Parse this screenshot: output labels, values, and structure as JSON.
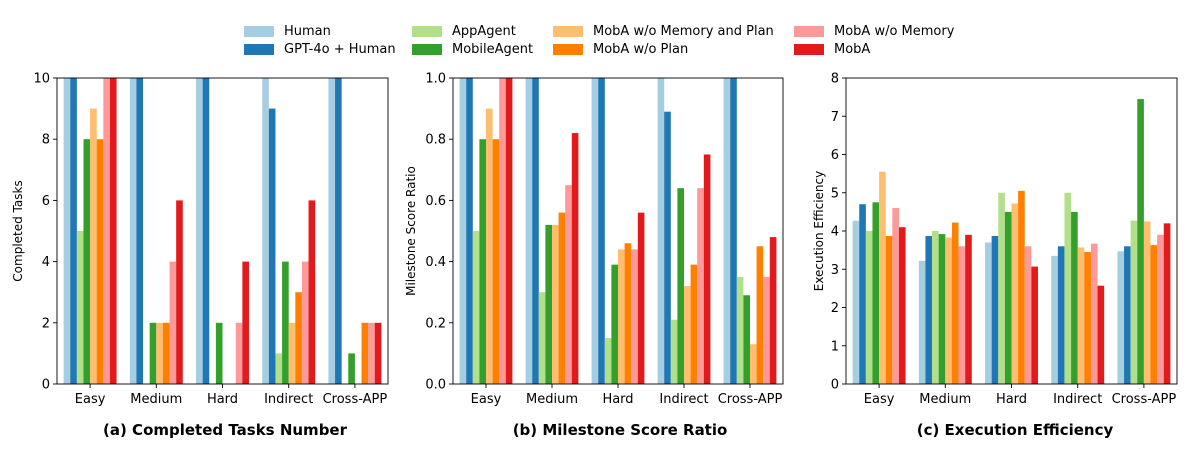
{
  "legend": [
    {
      "label": "Human",
      "color": "#a6cee3"
    },
    {
      "label": "GPT-4o + Human",
      "color": "#1f78b4"
    },
    {
      "label": "AppAgent",
      "color": "#b2df8a"
    },
    {
      "label": "MobileAgent",
      "color": "#33a02c"
    },
    {
      "label": "MobA w/o Memory and Plan",
      "color": "#fdbf6f"
    },
    {
      "label": "MobA w/o Plan",
      "color": "#ff7f00"
    },
    {
      "label": "MobA w/o Memory",
      "color": "#fb9a99"
    },
    {
      "label": "MobA",
      "color": "#e31a1c"
    }
  ],
  "chart_data": [
    {
      "type": "bar",
      "caption": "(a) Completed Tasks Number",
      "ylabel": "Completed Tasks",
      "ylim": [
        0,
        10
      ],
      "yticks": [
        0,
        2,
        4,
        6,
        8,
        10
      ],
      "tick_labels": [
        "0",
        "2",
        "4",
        "6",
        "8",
        "10"
      ],
      "categories": [
        "Easy",
        "Medium",
        "Hard",
        "Indirect",
        "Cross-APP"
      ],
      "series": [
        {
          "name": "Human",
          "values": [
            10,
            10,
            10,
            10,
            10
          ]
        },
        {
          "name": "GPT-4o + Human",
          "values": [
            10,
            10,
            10,
            9,
            10
          ]
        },
        {
          "name": "AppAgent",
          "values": [
            5,
            0,
            0,
            1,
            0
          ]
        },
        {
          "name": "MobileAgent",
          "values": [
            8,
            2,
            2,
            4,
            1
          ]
        },
        {
          "name": "MobA w/o Memory and Plan",
          "values": [
            9,
            2,
            0,
            2,
            0
          ]
        },
        {
          "name": "MobA w/o Plan",
          "values": [
            8,
            2,
            0,
            3,
            2
          ]
        },
        {
          "name": "MobA w/o Memory",
          "values": [
            10,
            4,
            2,
            4,
            2
          ]
        },
        {
          "name": "MobA",
          "values": [
            10,
            6,
            4,
            6,
            2
          ]
        }
      ]
    },
    {
      "type": "bar",
      "caption": "(b) Milestone Score Ratio",
      "ylabel": "Milestone Score Ratio",
      "ylim": [
        0,
        1
      ],
      "yticks": [
        0,
        0.2,
        0.4,
        0.6,
        0.8,
        1.0
      ],
      "tick_labels": [
        "0.0",
        "0.2",
        "0.4",
        "0.6",
        "0.8",
        "1.0"
      ],
      "categories": [
        "Easy",
        "Medium",
        "Hard",
        "Indirect",
        "Cross-APP"
      ],
      "series": [
        {
          "name": "Human",
          "values": [
            1.0,
            1.0,
            1.0,
            1.0,
            1.0
          ]
        },
        {
          "name": "GPT-4o + Human",
          "values": [
            1.0,
            1.0,
            1.0,
            0.89,
            1.0
          ]
        },
        {
          "name": "AppAgent",
          "values": [
            0.5,
            0.3,
            0.15,
            0.21,
            0.35
          ]
        },
        {
          "name": "MobileAgent",
          "values": [
            0.8,
            0.52,
            0.39,
            0.64,
            0.29
          ]
        },
        {
          "name": "MobA w/o Memory and Plan",
          "values": [
            0.9,
            0.52,
            0.44,
            0.32,
            0.13
          ]
        },
        {
          "name": "MobA w/o Plan",
          "values": [
            0.8,
            0.56,
            0.46,
            0.39,
            0.45
          ]
        },
        {
          "name": "MobA w/o Memory",
          "values": [
            1.0,
            0.65,
            0.44,
            0.64,
            0.35
          ]
        },
        {
          "name": "MobA",
          "values": [
            1.0,
            0.82,
            0.56,
            0.75,
            0.48
          ]
        }
      ]
    },
    {
      "type": "bar",
      "caption": "(c) Execution Efficiency",
      "ylabel": "Execution Efficiency",
      "ylim": [
        0,
        8
      ],
      "yticks": [
        0,
        1,
        2,
        3,
        4,
        5,
        6,
        7,
        8
      ],
      "tick_labels": [
        "0",
        "1",
        "2",
        "3",
        "4",
        "5",
        "6",
        "7",
        "8"
      ],
      "categories": [
        "Easy",
        "Medium",
        "Hard",
        "Indirect",
        "Cross-APP"
      ],
      "series": [
        {
          "name": "Human",
          "values": [
            4.27,
            3.22,
            3.7,
            3.35,
            3.47
          ]
        },
        {
          "name": "GPT-4o + Human",
          "values": [
            4.7,
            3.87,
            3.87,
            3.6,
            3.6
          ]
        },
        {
          "name": "AppAgent",
          "values": [
            4.0,
            4.0,
            5.0,
            5.0,
            4.27
          ]
        },
        {
          "name": "MobileAgent",
          "values": [
            4.75,
            3.92,
            4.5,
            4.5,
            7.45
          ]
        },
        {
          "name": "MobA w/o Memory and Plan",
          "values": [
            5.55,
            3.83,
            4.72,
            3.57,
            4.25
          ]
        },
        {
          "name": "MobA w/o Plan",
          "values": [
            3.87,
            4.22,
            5.05,
            3.45,
            3.63
          ]
        },
        {
          "name": "MobA w/o Memory",
          "values": [
            4.6,
            3.6,
            3.6,
            3.67,
            3.9
          ]
        },
        {
          "name": "MobA",
          "values": [
            4.1,
            3.9,
            3.07,
            2.57,
            4.2
          ]
        }
      ]
    }
  ]
}
